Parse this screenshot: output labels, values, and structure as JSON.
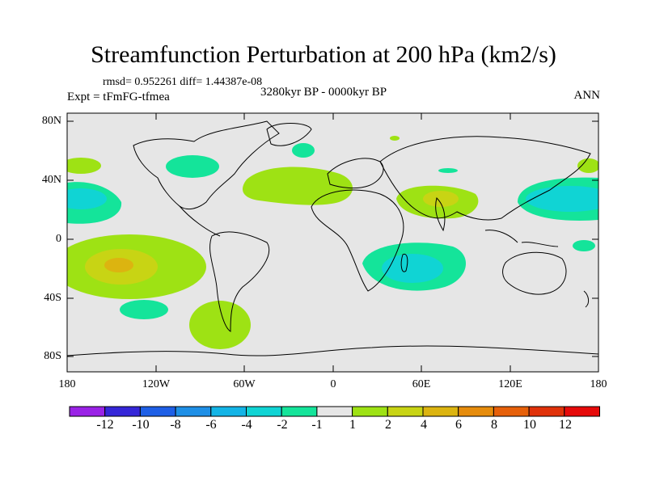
{
  "title": "Streamfunction Perturbation at 200 hPa (km2/s)",
  "stats_text": "rmsd= 0.952261 diff= 1.44387e-08",
  "period_text": "3280kyr BP - 0000kyr BP",
  "experiment_text": "Expt = tFmFG-tfmea",
  "season": "ANN",
  "lat_labels": [
    "80N",
    "40N",
    "0",
    "40S",
    "80S"
  ],
  "lon_labels": [
    "180",
    "120W",
    "60W",
    "0",
    "60E",
    "120E",
    "180"
  ],
  "colorbar": {
    "labels": [
      "-12",
      "-10",
      "-8",
      "-6",
      "-4",
      "-2",
      "-1",
      "1",
      "2",
      "4",
      "6",
      "8",
      "10",
      "12"
    ],
    "colors": [
      "#9a22e6",
      "#3526d8",
      "#1e5fe6",
      "#1e8fe6",
      "#13b4e6",
      "#10d4d4",
      "#14e49a",
      "#e6e6e6",
      "#9ee214",
      "#c8d414",
      "#dcb410",
      "#e68c0c",
      "#e6600a",
      "#e0320a",
      "#e60a0a"
    ]
  },
  "field_colors": {
    "background": "#e6e6e6",
    "positive_1": "#9ee214",
    "positive_2": "#c8d414",
    "positive_3": "#dcb410",
    "negative_1": "#14e49a",
    "negative_2": "#10d4d4"
  }
}
